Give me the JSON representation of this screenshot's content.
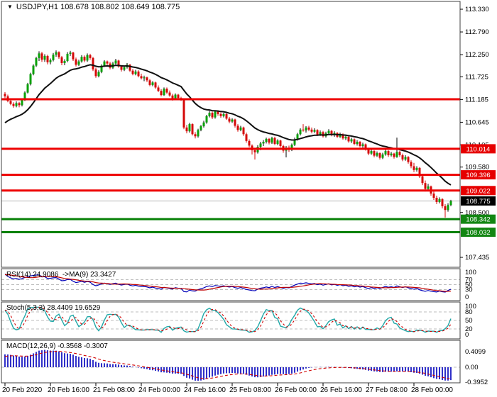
{
  "header": {
    "dropdown_icon": "▼",
    "title": "USDJPY,H1 108.678 108.802 108.649 108.775"
  },
  "colors": {
    "up": "#08a008",
    "down": "#d40808",
    "ma": "#101010",
    "resistance": "#ee0000",
    "support": "#068006",
    "current_price": "#b4b4b4",
    "badge_red": "#e60000",
    "badge_green": "#128612",
    "badge_black": "#000000",
    "rsi": "#0000b8",
    "rsi_ma": "#c00000",
    "stoch_k": "#20a8a8",
    "stoch_d": "#d00000",
    "macd_hist": "#3030c8",
    "macd_signal": "#d00000",
    "grid": "#bdbdbd",
    "border": "#404040",
    "axis_text": "#000000"
  },
  "price_axis": {
    "labels": [
      "113.330",
      "112.790",
      "112.250",
      "111.725",
      "111.185",
      "110.645",
      "110.105",
      "109.580",
      "108.500",
      "107.435"
    ]
  },
  "hlines": [
    {
      "price": 111.19,
      "type": "resistance",
      "label": ""
    },
    {
      "price": 110.014,
      "type": "resistance",
      "label": "110.014"
    },
    {
      "price": 109.396,
      "type": "resistance",
      "label": "109.396"
    },
    {
      "price": 109.022,
      "type": "resistance",
      "label": "109.022"
    },
    {
      "price": 108.775,
      "type": "current",
      "label": "108.775"
    },
    {
      "price": 108.342,
      "type": "support",
      "label": "108.342"
    },
    {
      "price": 108.032,
      "type": "support",
      "label": "108.032"
    }
  ],
  "panes": {
    "rsi": {
      "title": "RSI(14) 24.9086  ->MA(9) 23.3427",
      "levels": [
        "100",
        "70",
        "50",
        "30",
        "0"
      ],
      "grid": [
        70,
        50,
        30
      ]
    },
    "stoch": {
      "title": "Stoch(5,3,3) 28.4409 19.6529",
      "levels": [
        "100",
        "80",
        "50",
        "20",
        "0"
      ],
      "grid": [
        80,
        50,
        20
      ]
    },
    "macd": {
      "title": "MACD(12,26,9) -0.3568 -0.3007",
      "levels": [
        "0.4099",
        "0.00",
        "-0.3952"
      ],
      "grid": [
        0
      ]
    }
  },
  "time_axis": {
    "labels": [
      "20 Feb 2020",
      "20 Feb 16:00",
      "21 Feb 08:00",
      "24 Feb 00:00",
      "24 Feb 16:00",
      "25 Feb 08:00",
      "26 Feb 00:00",
      "26 Feb 16:00",
      "27 Feb 08:00",
      "28 Feb 00:00"
    ]
  },
  "chart_data": {
    "type": "candlestick",
    "symbol": "USDJPY",
    "timeframe": "H1",
    "current_ohlc": {
      "open": 108.678,
      "high": 108.802,
      "low": 108.649,
      "close": 108.775
    },
    "price_top": 113.33,
    "price_bottom": 107.435,
    "candles_per_tick": 16,
    "indicators": [
      "MA(21)",
      "RSI(14)->MA(9)",
      "Stoch(5,3,3)",
      "MACD(12,26,9)"
    ],
    "rsi_values": {
      "rsi": 24.9086,
      "ma": 23.3427
    },
    "stoch_values": {
      "k": 28.4409,
      "d": 19.6529
    },
    "macd_values": {
      "macd": -0.3568,
      "signal": -0.3007
    },
    "macd_scale": {
      "max": 0.4099,
      "min": -0.3952
    },
    "warmup_closes": [
      109.4,
      109.45,
      109.43,
      109.5,
      109.55,
      109.52,
      109.6,
      109.66,
      109.63,
      109.7,
      109.76,
      109.73,
      109.8,
      109.86,
      109.83,
      109.9,
      109.96,
      109.93,
      110.0,
      110.06,
      110.03,
      110.1,
      110.17,
      110.14,
      110.22,
      110.29,
      110.26,
      110.34,
      110.41,
      110.38,
      110.46,
      110.54,
      110.6,
      110.68,
      110.76,
      110.84,
      110.92,
      111.02,
      111.12,
      111.24
    ],
    "ohlc": [
      [
        111.32,
        111.36,
        111.22,
        111.26
      ],
      [
        111.26,
        111.3,
        111.12,
        111.15
      ],
      [
        111.15,
        111.2,
        111.05,
        111.08
      ],
      [
        111.08,
        111.12,
        110.99,
        111.03
      ],
      [
        111.03,
        111.14,
        111.0,
        111.1
      ],
      [
        111.1,
        111.13,
        111.0,
        111.05
      ],
      [
        111.05,
        111.2,
        111.02,
        111.17
      ],
      [
        111.17,
        111.38,
        111.15,
        111.35
      ],
      [
        111.35,
        111.58,
        111.33,
        111.55
      ],
      [
        111.55,
        111.82,
        111.52,
        111.79
      ],
      [
        111.79,
        112.02,
        111.76,
        111.99
      ],
      [
        111.99,
        112.2,
        111.96,
        112.17
      ],
      [
        112.17,
        112.33,
        112.1,
        112.28
      ],
      [
        112.28,
        112.32,
        112.08,
        112.13
      ],
      [
        112.13,
        112.26,
        112.08,
        112.22
      ],
      [
        112.22,
        112.25,
        112.02,
        112.07
      ],
      [
        112.07,
        112.16,
        112.02,
        112.12
      ],
      [
        112.12,
        112.29,
        112.09,
        112.25
      ],
      [
        112.25,
        112.35,
        112.2,
        112.31
      ],
      [
        112.31,
        112.33,
        112.15,
        112.19
      ],
      [
        112.19,
        112.22,
        112.0,
        112.05
      ],
      [
        112.05,
        112.14,
        112.0,
        112.1
      ],
      [
        112.1,
        112.31,
        112.07,
        112.27
      ],
      [
        112.27,
        112.34,
        112.22,
        112.3
      ],
      [
        112.3,
        112.32,
        112.1,
        112.14
      ],
      [
        112.14,
        112.18,
        111.97,
        112.01
      ],
      [
        112.01,
        112.13,
        111.98,
        112.09
      ],
      [
        112.09,
        112.24,
        112.06,
        112.2
      ],
      [
        112.2,
        112.23,
        112.07,
        112.11
      ],
      [
        112.11,
        112.28,
        112.08,
        112.24
      ],
      [
        112.24,
        112.27,
        112.13,
        112.17
      ],
      [
        112.17,
        112.2,
        111.86,
        111.9
      ],
      [
        111.9,
        111.94,
        111.7,
        111.74
      ],
      [
        111.74,
        111.88,
        111.71,
        111.84
      ],
      [
        111.84,
        112.02,
        111.81,
        111.99
      ],
      [
        111.99,
        112.12,
        111.96,
        112.09
      ],
      [
        112.09,
        112.11,
        111.99,
        112.04
      ],
      [
        112.04,
        112.08,
        111.9,
        111.94
      ],
      [
        111.94,
        112.08,
        111.91,
        112.04
      ],
      [
        112.04,
        112.15,
        112.01,
        112.11
      ],
      [
        112.11,
        112.13,
        111.94,
        111.97
      ],
      [
        111.97,
        112.0,
        111.85,
        111.89
      ],
      [
        111.89,
        111.99,
        111.86,
        111.95
      ],
      [
        111.95,
        112.05,
        111.92,
        112.01
      ],
      [
        112.01,
        112.03,
        111.84,
        111.87
      ],
      [
        111.87,
        111.91,
        111.76,
        111.79
      ],
      [
        111.79,
        111.89,
        111.76,
        111.85
      ],
      [
        111.85,
        111.88,
        111.71,
        111.74
      ],
      [
        111.74,
        111.8,
        111.66,
        111.69
      ],
      [
        111.69,
        111.75,
        111.62,
        111.71
      ],
      [
        111.71,
        111.73,
        111.6,
        111.64
      ],
      [
        111.64,
        111.67,
        111.5,
        111.53
      ],
      [
        111.53,
        111.62,
        111.5,
        111.59
      ],
      [
        111.59,
        111.61,
        111.44,
        111.47
      ],
      [
        111.47,
        111.52,
        111.36,
        111.39
      ],
      [
        111.39,
        111.43,
        111.26,
        111.29
      ],
      [
        111.29,
        111.47,
        111.27,
        111.44
      ],
      [
        111.44,
        111.47,
        111.32,
        111.35
      ],
      [
        111.35,
        111.4,
        111.25,
        111.28
      ],
      [
        111.28,
        111.32,
        111.16,
        111.19
      ],
      [
        111.19,
        111.33,
        111.17,
        111.3
      ],
      [
        111.3,
        111.32,
        111.19,
        111.22
      ],
      [
        111.22,
        111.25,
        111.15,
        111.19
      ],
      [
        111.19,
        111.21,
        110.48,
        110.52
      ],
      [
        110.52,
        110.58,
        110.38,
        110.43
      ],
      [
        110.43,
        110.63,
        110.4,
        110.6
      ],
      [
        110.6,
        110.62,
        110.33,
        110.36
      ],
      [
        110.36,
        110.41,
        110.26,
        110.31
      ],
      [
        110.31,
        110.49,
        110.28,
        110.46
      ],
      [
        110.46,
        110.58,
        110.43,
        110.55
      ],
      [
        110.55,
        110.68,
        110.52,
        110.64
      ],
      [
        110.64,
        110.82,
        110.61,
        110.79
      ],
      [
        110.79,
        110.91,
        110.76,
        110.87
      ],
      [
        110.87,
        110.9,
        110.72,
        110.76
      ],
      [
        110.76,
        110.93,
        110.73,
        110.9
      ],
      [
        110.9,
        110.93,
        110.8,
        110.84
      ],
      [
        110.84,
        110.88,
        110.75,
        110.79
      ],
      [
        110.79,
        110.87,
        110.76,
        110.84
      ],
      [
        110.84,
        110.86,
        110.7,
        110.73
      ],
      [
        110.73,
        110.77,
        110.62,
        110.66
      ],
      [
        110.66,
        110.74,
        110.63,
        110.71
      ],
      [
        110.71,
        110.73,
        110.52,
        110.56
      ],
      [
        110.56,
        110.6,
        110.42,
        110.46
      ],
      [
        110.46,
        110.56,
        110.43,
        110.52
      ],
      [
        110.52,
        110.54,
        110.32,
        110.36
      ],
      [
        110.36,
        110.4,
        110.16,
        110.2
      ],
      [
        110.2,
        110.24,
        110.05,
        110.09
      ],
      [
        110.09,
        110.12,
        109.88,
        109.98
      ],
      [
        109.98,
        110.02,
        109.76,
        109.93
      ],
      [
        109.93,
        110.1,
        109.9,
        110.06
      ],
      [
        110.06,
        110.18,
        109.98,
        110.14
      ],
      [
        110.14,
        110.22,
        110.08,
        110.18
      ],
      [
        110.18,
        110.28,
        110.14,
        110.25
      ],
      [
        110.25,
        110.27,
        110.12,
        110.16
      ],
      [
        110.16,
        110.3,
        110.13,
        110.27
      ],
      [
        110.27,
        110.3,
        110.1,
        110.13
      ],
      [
        110.13,
        110.24,
        110.1,
        110.21
      ],
      [
        110.21,
        110.23,
        110.05,
        110.08
      ],
      [
        110.08,
        110.11,
        109.92,
        109.97
      ],
      [
        109.97,
        110.08,
        109.81,
        110.04
      ],
      [
        110.04,
        110.09,
        109.94,
        109.99
      ],
      [
        109.99,
        110.14,
        109.96,
        110.11
      ],
      [
        110.11,
        110.28,
        110.08,
        110.24
      ],
      [
        110.24,
        110.39,
        110.21,
        110.36
      ],
      [
        110.36,
        110.5,
        110.33,
        110.47
      ],
      [
        110.47,
        110.6,
        110.42,
        110.45
      ],
      [
        110.45,
        110.55,
        110.4,
        110.52
      ],
      [
        110.52,
        110.56,
        110.43,
        110.47
      ],
      [
        110.47,
        110.52,
        110.38,
        110.42
      ],
      [
        110.42,
        110.5,
        110.39,
        110.46
      ],
      [
        110.46,
        110.48,
        110.32,
        110.35
      ],
      [
        110.35,
        110.45,
        110.32,
        110.41
      ],
      [
        110.41,
        110.44,
        110.28,
        110.31
      ],
      [
        110.31,
        110.42,
        110.28,
        110.38
      ],
      [
        110.38,
        110.48,
        110.35,
        110.44
      ],
      [
        110.44,
        110.46,
        110.31,
        110.34
      ],
      [
        110.34,
        110.43,
        110.3,
        110.39
      ],
      [
        110.39,
        110.41,
        110.27,
        110.3
      ],
      [
        110.3,
        110.4,
        110.27,
        110.36
      ],
      [
        110.36,
        110.38,
        110.23,
        110.26
      ],
      [
        110.26,
        110.34,
        110.22,
        110.3
      ],
      [
        110.3,
        110.32,
        110.16,
        110.19
      ],
      [
        110.19,
        110.28,
        110.15,
        110.24
      ],
      [
        110.24,
        110.26,
        110.1,
        110.13
      ],
      [
        110.13,
        110.22,
        110.09,
        110.18
      ],
      [
        110.18,
        110.2,
        110.05,
        110.08
      ],
      [
        110.08,
        110.16,
        110.04,
        110.12
      ],
      [
        110.12,
        110.14,
        109.97,
        110.0
      ],
      [
        110.0,
        110.04,
        109.86,
        109.9
      ],
      [
        109.9,
        110.0,
        109.87,
        109.96
      ],
      [
        109.96,
        109.98,
        109.81,
        109.85
      ],
      [
        109.85,
        109.95,
        109.82,
        109.91
      ],
      [
        109.91,
        109.93,
        109.76,
        109.8
      ],
      [
        109.8,
        109.92,
        109.77,
        109.88
      ],
      [
        109.88,
        110.0,
        109.85,
        109.96
      ],
      [
        109.96,
        109.98,
        109.82,
        109.86
      ],
      [
        109.86,
        109.94,
        109.83,
        109.9
      ],
      [
        109.9,
        109.92,
        109.78,
        109.82
      ],
      [
        109.82,
        110.28,
        109.8,
        109.94
      ],
      [
        109.94,
        109.97,
        109.82,
        109.86
      ],
      [
        109.86,
        109.9,
        109.72,
        109.76
      ],
      [
        109.76,
        109.86,
        109.73,
        109.82
      ],
      [
        109.82,
        109.84,
        109.66,
        109.7
      ],
      [
        109.7,
        109.74,
        109.55,
        109.6
      ],
      [
        109.6,
        109.68,
        109.46,
        109.51
      ],
      [
        109.51,
        109.6,
        109.47,
        109.56
      ],
      [
        109.56,
        109.58,
        109.32,
        109.36
      ],
      [
        109.36,
        109.4,
        109.15,
        109.2
      ],
      [
        109.2,
        109.26,
        109.0,
        109.06
      ],
      [
        109.06,
        109.18,
        109.02,
        109.12
      ],
      [
        109.12,
        109.14,
        108.9,
        108.95
      ],
      [
        108.95,
        109.0,
        108.8,
        108.85
      ],
      [
        108.85,
        108.9,
        108.7,
        108.75
      ],
      [
        108.75,
        108.86,
        108.72,
        108.82
      ],
      [
        108.82,
        108.84,
        108.6,
        108.65
      ],
      [
        108.65,
        108.7,
        108.38,
        108.56
      ],
      [
        108.56,
        108.72,
        108.52,
        108.678
      ],
      [
        108.678,
        108.802,
        108.649,
        108.775
      ]
    ]
  }
}
